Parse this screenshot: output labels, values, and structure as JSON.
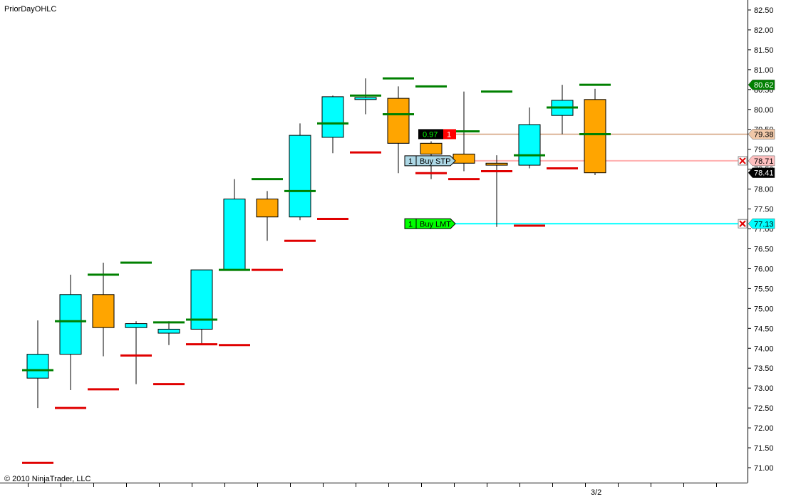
{
  "chart_data": {
    "type": "candlestick",
    "title": "PriorDayOHLC",
    "copyright": "© 2010 NinjaTrader, LLC",
    "x_tick_labels": [
      {
        "bar": 17,
        "label": "3/2"
      }
    ],
    "ylim": [
      70.6,
      82.7
    ],
    "grid": false,
    "y_ticks": [
      "71.00",
      "71.50",
      "72.00",
      "72.50",
      "73.00",
      "73.50",
      "74.00",
      "74.50",
      "75.00",
      "75.50",
      "76.00",
      "76.50",
      "77.00",
      "77.50",
      "78.00",
      "78.50",
      "79.00",
      "79.50",
      "80.00",
      "80.50",
      "81.00",
      "81.50",
      "82.00",
      "82.50"
    ],
    "colors": {
      "up": "#00ffff",
      "down": "#ffa500",
      "prior_high": "#008000",
      "prior_low": "#e00000"
    },
    "candles": [
      {
        "open": 73.25,
        "high": 74.7,
        "low": 72.5,
        "close": 73.85
      },
      {
        "open": 73.85,
        "high": 75.85,
        "low": 72.95,
        "close": 75.35
      },
      {
        "open": 75.35,
        "high": 76.15,
        "low": 73.8,
        "close": 74.52
      },
      {
        "open": 74.52,
        "high": 74.68,
        "low": 73.1,
        "close": 74.62
      },
      {
        "open": 74.38,
        "high": 74.68,
        "low": 74.08,
        "close": 74.48
      },
      {
        "open": 74.48,
        "high": 75.97,
        "low": 74.1,
        "close": 75.97
      },
      {
        "open": 75.97,
        "high": 78.25,
        "low": 75.97,
        "close": 77.75
      },
      {
        "open": 77.75,
        "high": 77.95,
        "low": 76.7,
        "close": 77.3
      },
      {
        "open": 77.3,
        "high": 79.65,
        "low": 77.22,
        "close": 79.35
      },
      {
        "open": 79.3,
        "high": 80.35,
        "low": 78.9,
        "close": 80.32
      },
      {
        "open": 80.25,
        "high": 80.78,
        "low": 79.88,
        "close": 80.3
      },
      {
        "open": 80.28,
        "high": 80.58,
        "low": 78.4,
        "close": 79.15
      },
      {
        "open": 79.15,
        "high": 79.2,
        "low": 78.25,
        "close": 78.88
      },
      {
        "open": 78.88,
        "high": 80.45,
        "low": 78.45,
        "close": 78.65
      },
      {
        "open": 78.65,
        "high": 78.85,
        "low": 77.05,
        "close": 78.6
      },
      {
        "open": 78.6,
        "high": 80.05,
        "low": 78.52,
        "close": 79.62
      },
      {
        "open": 79.85,
        "high": 80.62,
        "low": 79.38,
        "close": 80.23
      },
      {
        "open": 80.25,
        "high": 80.52,
        "low": 78.35,
        "close": 78.41
      }
    ],
    "prior_high": [
      null,
      74.68,
      75.85,
      76.15,
      74.65,
      74.72,
      75.97,
      78.25,
      77.95,
      79.65,
      80.35,
      80.78,
      80.58,
      79.45,
      80.45,
      78.85,
      80.05,
      80.62
    ],
    "prior_low": [
      71.12,
      72.5,
      72.97,
      73.82,
      73.1,
      74.1,
      74.08,
      75.97,
      76.7,
      77.25,
      78.92,
      79.88,
      78.4,
      78.25,
      78.45,
      77.08,
      78.52,
      79.38
    ],
    "midline": [
      73.45,
      null,
      null,
      null,
      null,
      null,
      null,
      null,
      null,
      null,
      null,
      79.88,
      null,
      null,
      null,
      null,
      null,
      79.38
    ],
    "price_markers": [
      {
        "label": "80.62",
        "value": 80.62,
        "bg": "#008000",
        "fg": "#ffffff"
      },
      {
        "label": "79.38",
        "value": 79.38,
        "bg": "#f0c8a8",
        "fg": "#000000"
      },
      {
        "label": "78.71",
        "value": 78.71,
        "bg": "#ffc0c0",
        "fg": "#000000"
      },
      {
        "label": "78.41",
        "value": 78.41,
        "bg": "#000000",
        "fg": "#ffffff"
      },
      {
        "label": "77.13",
        "value": 77.13,
        "bg": "#00ffff",
        "fg": "#000000"
      }
    ],
    "orders": [
      {
        "qty": "1",
        "label": "Buy STP",
        "value": 78.71,
        "line_color": "#ffb0b0",
        "tag_color": "#add8e6"
      },
      {
        "qty": "1",
        "label": "Buy LMT",
        "value": 77.13,
        "line_color": "#00ffff",
        "tag_color": "#00ff00"
      }
    ],
    "position_tag": {
      "pnl": "0.97",
      "qty": "1",
      "value": 79.38,
      "line_color": "#d2a07a"
    }
  }
}
